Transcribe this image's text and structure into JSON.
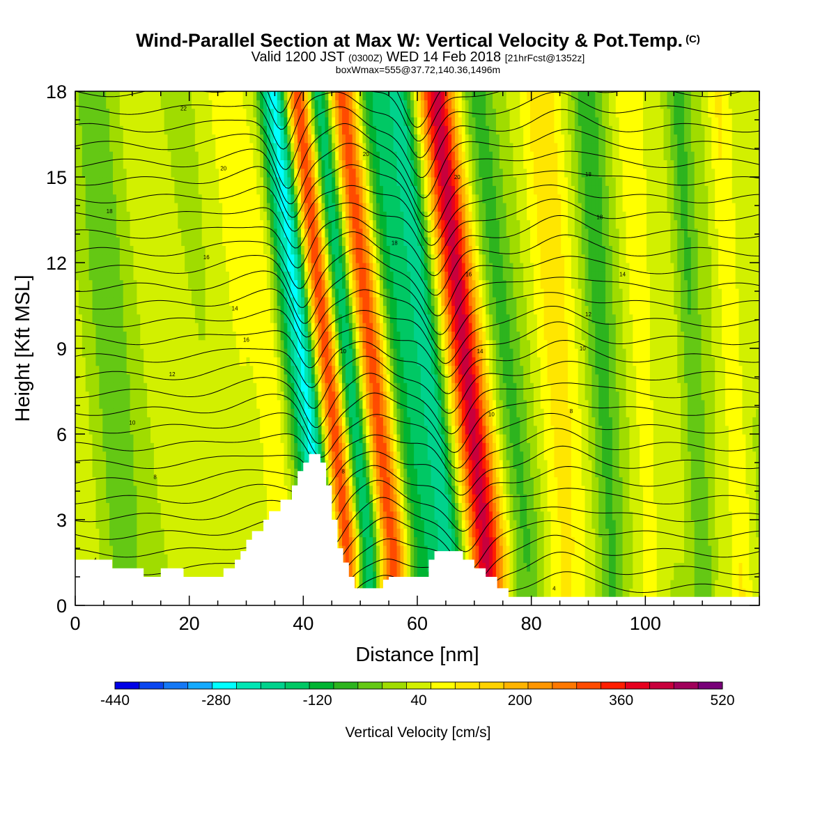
{
  "header": {
    "title": "Wind-Parallel Section at Max W: Vertical Velocity & Pot.Temp.",
    "title_mark": "(C)",
    "valid_prefix": "Valid 1200 JST",
    "valid_utc": "(0300Z)",
    "valid_date": "WED 14 Feb 2018",
    "forecast_info": "[21hrFcst@1352z]",
    "box_info": "boxWmax=555@37.72,140.36,1496m"
  },
  "chart_data": {
    "type": "heatmap",
    "xlabel": "Distance [nm]",
    "ylabel": "Height [Kft MSL]",
    "xlim": [
      0,
      120
    ],
    "ylim": [
      0,
      18
    ],
    "x_ticks": [
      "0",
      "20",
      "40",
      "60",
      "80",
      "100"
    ],
    "y_ticks": [
      "0",
      "3",
      "6",
      "9",
      "12",
      "15",
      "18"
    ],
    "colorbar": {
      "label": "Vertical Velocity [cm/s]",
      "tick_labels": [
        "-440",
        "-280",
        "-120",
        "40",
        "200",
        "360",
        "520"
      ],
      "colors": [
        "#0000e6",
        "#0a46f0",
        "#1478f5",
        "#14aaff",
        "#00ffff",
        "#00e6b4",
        "#00d28c",
        "#00c864",
        "#00b432",
        "#2db41e",
        "#64c814",
        "#a0dc00",
        "#d2f000",
        "#ffff00",
        "#ffe600",
        "#ffd200",
        "#ffb400",
        "#ff9600",
        "#ff7800",
        "#ff4b00",
        "#ff1e00",
        "#e6001e",
        "#c8003c",
        "#a0005a",
        "#780078"
      ]
    },
    "vertical_velocity_bands": [
      {
        "x": 41.5,
        "w": 2.2,
        "v": -80
      },
      {
        "x": 44.3,
        "w": 2.8,
        "v": -300
      },
      {
        "x": 47.5,
        "w": 2.6,
        "v": 400
      },
      {
        "x": 51.5,
        "w": 2.5,
        "v": -260
      },
      {
        "x": 55.5,
        "w": 2.8,
        "v": 300
      },
      {
        "x": 60.5,
        "w": 3.0,
        "v": -150
      },
      {
        "x": 65.5,
        "w": 2.8,
        "v": -200
      },
      {
        "x": 72.0,
        "w": 3.2,
        "v": 380
      },
      {
        "x": 79.0,
        "w": 2.8,
        "v": -90
      },
      {
        "x": 86.0,
        "w": 3.5,
        "v": 90
      },
      {
        "x": 94.0,
        "w": 2.6,
        "v": -100
      },
      {
        "x": 101.0,
        "w": 2.5,
        "v": 60
      },
      {
        "x": 110.0,
        "w": 2.0,
        "v": -90
      },
      {
        "x": 117.0,
        "w": 2.0,
        "v": 80
      },
      {
        "x": 8.0,
        "w": 3.5,
        "v": -60
      },
      {
        "x": 30.0,
        "w": 4.0,
        "v": 40
      },
      {
        "x": 36.0,
        "w": 2.0,
        "v": 50
      }
    ],
    "terrain": [
      [
        0,
        1.6
      ],
      [
        6.5,
        1.6
      ],
      [
        6.5,
        1.3
      ],
      [
        12,
        1.3
      ],
      [
        12,
        1.0
      ],
      [
        15,
        1.0
      ],
      [
        15,
        1.3
      ],
      [
        19,
        1.3
      ],
      [
        19,
        1.0
      ],
      [
        26,
        1.0
      ],
      [
        26,
        1.3
      ],
      [
        28,
        1.3
      ],
      [
        28,
        1.6
      ],
      [
        29,
        1.6
      ],
      [
        29,
        1.9
      ],
      [
        30,
        1.9
      ],
      [
        30,
        2.3
      ],
      [
        31,
        2.3
      ],
      [
        31,
        2.6
      ],
      [
        33,
        2.6
      ],
      [
        33,
        3.0
      ],
      [
        34,
        3.0
      ],
      [
        34,
        3.3
      ],
      [
        36,
        3.3
      ],
      [
        36,
        3.7
      ],
      [
        38,
        3.7
      ],
      [
        38,
        4.2
      ],
      [
        39,
        4.2
      ],
      [
        39,
        4.7
      ],
      [
        40,
        4.7
      ],
      [
        40,
        5.0
      ],
      [
        41,
        5.0
      ],
      [
        41,
        5.3
      ],
      [
        43,
        5.3
      ],
      [
        43,
        5.0
      ],
      [
        44,
        5.0
      ],
      [
        44,
        4.2
      ],
      [
        45,
        4.2
      ],
      [
        45,
        3.0
      ],
      [
        46,
        3.0
      ],
      [
        46,
        2.0
      ],
      [
        47,
        2.0
      ],
      [
        47,
        1.5
      ],
      [
        48,
        1.5
      ],
      [
        48,
        1.0
      ],
      [
        49,
        1.0
      ],
      [
        49,
        0.6
      ],
      [
        54,
        0.6
      ],
      [
        54,
        0.9
      ],
      [
        55,
        0.9
      ],
      [
        55,
        1.0
      ],
      [
        62,
        1.0
      ],
      [
        62,
        1.6
      ],
      [
        63,
        1.6
      ],
      [
        63,
        1.9
      ],
      [
        68,
        1.9
      ],
      [
        68,
        1.6
      ],
      [
        70,
        1.6
      ],
      [
        70,
        1.3
      ],
      [
        72,
        1.3
      ],
      [
        72,
        1.0
      ],
      [
        74,
        1.0
      ],
      [
        74,
        0.6
      ],
      [
        76,
        0.6
      ],
      [
        76,
        0.3
      ],
      [
        120,
        0.3
      ]
    ],
    "theta_labels": [
      "22",
      "20",
      "18",
      "16",
      "14",
      "12",
      "10",
      "8",
      "6",
      "4"
    ]
  }
}
